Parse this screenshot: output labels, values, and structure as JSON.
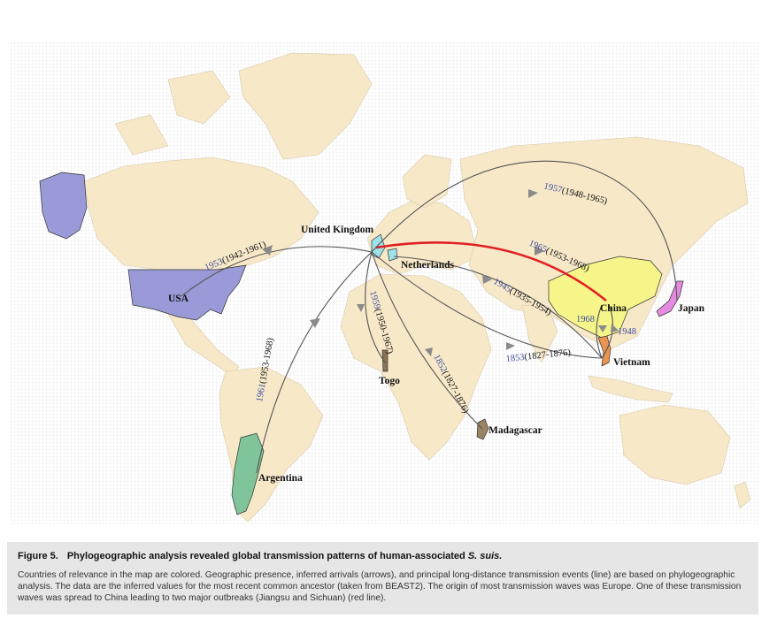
{
  "map": {
    "countries": [
      {
        "name": "USA",
        "highlight_color": "#9a9ad8"
      },
      {
        "name": "Argentina",
        "highlight_color": "#7fc49a"
      },
      {
        "name": "United Kingdom",
        "highlight_color": "#9fe2e8"
      },
      {
        "name": "Netherlands",
        "highlight_color": "#9fe2e8"
      },
      {
        "name": "Togo",
        "highlight_color": "#8b7355"
      },
      {
        "name": "Madagascar",
        "highlight_color": "#9b8363"
      },
      {
        "name": "China",
        "highlight_color": "#f5f58a"
      },
      {
        "name": "Vietnam",
        "highlight_color": "#e8944f"
      },
      {
        "name": "Japan",
        "highlight_color": "#e48ae0"
      }
    ],
    "base_land_color": "#f7e8c8",
    "ocean_color": "#ffffff",
    "transmission_events": [
      {
        "year": "1953",
        "range": "(1942-1961)",
        "from": "United Kingdom",
        "to": "USA"
      },
      {
        "year": "1961",
        "range": "(1953-1968)",
        "from": "United Kingdom",
        "to": "Argentina"
      },
      {
        "year": "1959",
        "range": "(1950-1967)",
        "from": "United Kingdom",
        "to": "Togo"
      },
      {
        "year": "1852",
        "range": "(1827-1876)",
        "from": "United Kingdom",
        "to": "Madagascar"
      },
      {
        "year": "1853",
        "range": "(1827-1876)",
        "from": "United Kingdom",
        "to": "Vietnam"
      },
      {
        "year": "1945",
        "range": "(1935-1954)",
        "from": "Netherlands",
        "to": "Vietnam"
      },
      {
        "year": "1965",
        "range": "(1953-1968)",
        "from": "United Kingdom",
        "to": "China",
        "highlight": "red"
      },
      {
        "year": "1957",
        "range": "(1948-1965)",
        "from": "United Kingdom",
        "to": "Japan"
      },
      {
        "year": "1968",
        "range": "",
        "from": "China",
        "to": "Vietnam"
      },
      {
        "year": "1948",
        "range": "",
        "from": "Vietnam",
        "to": "China"
      }
    ],
    "line_colors": {
      "default": "#555555",
      "highlight": "#e02020"
    }
  },
  "caption": {
    "figure_label": "Figure 5.",
    "title_plain": "Phylogeographic analysis revealed global transmission patterns of human-associated ",
    "title_italic": "S. suis.",
    "body": "Countries of relevance in the map are colored. Geographic presence, inferred arrivals (arrows), and principal long-distance transmission events (line) are based on phylogeographic analysis. The data are the inferred values for the most recent common ancestor (taken from BEAST2). The origin of most transmission waves was Europe. One of these transmission waves was spread to China leading to two major outbreaks (Jiangsu and Sichuan) (red line)."
  }
}
